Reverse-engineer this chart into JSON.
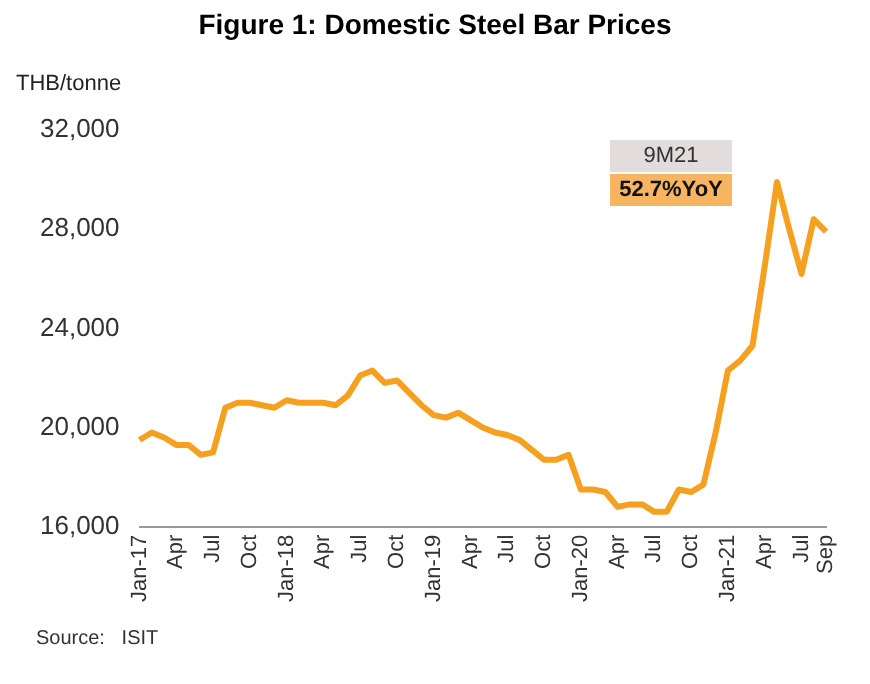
{
  "chart_data": {
    "type": "line",
    "title": "Figure 1: Domestic Steel Bar Prices",
    "ylabel": "THB/tonne",
    "categories": [
      "Jan-17",
      null,
      null,
      "Apr",
      null,
      null,
      "Jul",
      null,
      null,
      "Oct",
      null,
      null,
      "Jan-18",
      null,
      null,
      "Apr",
      null,
      null,
      "Jul",
      null,
      null,
      "Oct",
      null,
      null,
      "Jan-19",
      null,
      null,
      "Apr",
      null,
      null,
      "Jul",
      null,
      null,
      "Oct",
      null,
      null,
      "Jan-20",
      null,
      null,
      "Apr",
      null,
      null,
      "Jul",
      null,
      null,
      "Oct",
      null,
      null,
      "Jan-21",
      null,
      null,
      "Apr",
      null,
      null,
      "Jul",
      null,
      "Sep"
    ],
    "series": [
      {
        "color": "#f5a01e",
        "values": [
          19500,
          19800,
          19600,
          19300,
          19300,
          18900,
          19000,
          20800,
          21000,
          21000,
          20900,
          20800,
          21100,
          21000,
          21000,
          21000,
          20900,
          21300,
          22100,
          22300,
          21800,
          21900,
          21400,
          20900,
          20500,
          20400,
          20600,
          20300,
          20000,
          19800,
          19700,
          19500,
          19100,
          18700,
          18700,
          18900,
          17500,
          17500,
          17400,
          16800,
          16900,
          16900,
          16600,
          16600,
          17500,
          17400,
          17700,
          19800,
          22300,
          22700,
          23300,
          26500,
          29900,
          28000,
          26200,
          28400,
          27900
        ]
      }
    ],
    "ylim": [
      16000,
      32000
    ],
    "yticks": [
      {
        "value": 16000,
        "label": "16,000"
      },
      {
        "value": 20000,
        "label": "20,000"
      },
      {
        "value": 24000,
        "label": "24,000"
      },
      {
        "value": 28000,
        "label": "28,000"
      },
      {
        "value": 32000,
        "label": "32,000"
      }
    ],
    "grid": false,
    "legend": false,
    "marker": "none",
    "line_style": "solid",
    "annotations": [
      "9M21",
      "52.7%YoY",
      "Source:   ISIT"
    ]
  }
}
